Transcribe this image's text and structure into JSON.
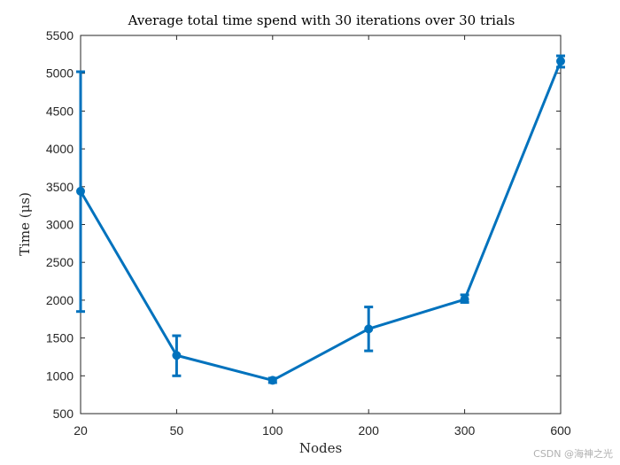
{
  "chart_data": {
    "type": "line",
    "title": "Average total time spend with 30 iterations over 30 trials",
    "xlabel": "Nodes",
    "ylabel": "Time (μs)",
    "categories": [
      "20",
      "50",
      "100",
      "200",
      "300",
      "600"
    ],
    "ylim": [
      500,
      5500
    ],
    "yticks": [
      500,
      1000,
      1500,
      2000,
      2500,
      3000,
      3500,
      4000,
      4500,
      5000,
      5500
    ],
    "grid": false,
    "series": [
      {
        "values": [
          3440,
          1270,
          940,
          1620,
          2010,
          5160
        ],
        "err_low": [
          1850,
          1000,
          910,
          1330,
          1970,
          5080
        ],
        "err_high": [
          5020,
          1530,
          970,
          1910,
          2070,
          5230
        ]
      }
    ],
    "colors": {
      "line": "#0072BD",
      "axis": "#262626"
    }
  },
  "watermark": "CSDN @海神之光"
}
